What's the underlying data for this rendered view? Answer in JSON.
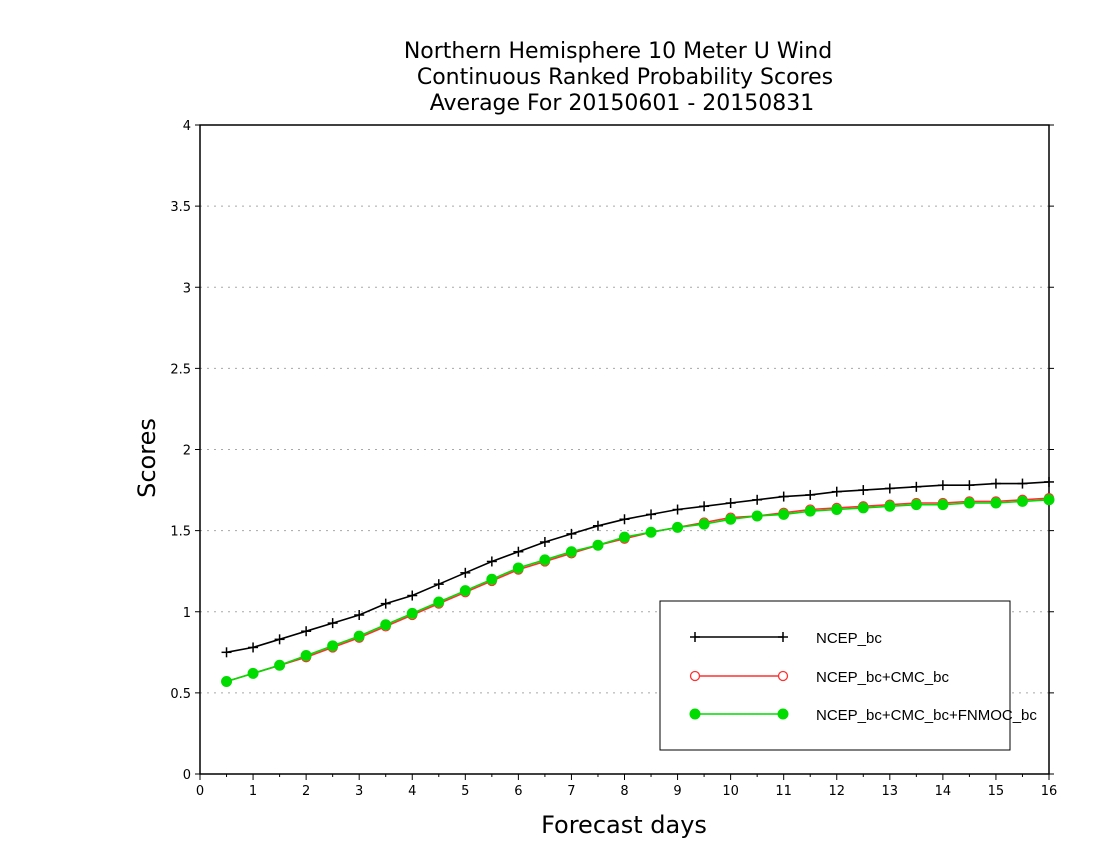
{
  "chart_data": {
    "type": "line",
    "title_lines": [
      "Northern Hemisphere 10 Meter U Wind",
      "Continuous Ranked Probability Scores",
      "Average For 20150601 - 20150831"
    ],
    "xlabel": "Forecast days",
    "ylabel": "Scores",
    "xlim": [
      0,
      16
    ],
    "ylim": [
      0,
      4
    ],
    "x_ticks": [
      "0",
      "1",
      "2",
      "3",
      "4",
      "5",
      "6",
      "7",
      "8",
      "9",
      "10",
      "11",
      "12",
      "13",
      "14",
      "15",
      "16"
    ],
    "y_ticks": [
      "0",
      "0.5",
      "1",
      "1.5",
      "2",
      "2.5",
      "3",
      "3.5",
      "4"
    ],
    "grid": true,
    "legend_position": "bottom-right",
    "x": [
      0.5,
      1,
      1.5,
      2,
      2.5,
      3,
      3.5,
      4,
      4.5,
      5,
      5.5,
      6,
      6.5,
      7,
      7.5,
      8,
      8.5,
      9,
      9.5,
      10,
      10.5,
      11,
      11.5,
      12,
      12.5,
      13,
      13.5,
      14,
      14.5,
      15,
      15.5,
      16
    ],
    "series": [
      {
        "name": "NCEP_bc",
        "color": "#000000",
        "marker": "plus",
        "values": [
          0.75,
          0.78,
          0.83,
          0.88,
          0.93,
          0.98,
          1.05,
          1.1,
          1.17,
          1.24,
          1.31,
          1.37,
          1.43,
          1.48,
          1.53,
          1.57,
          1.6,
          1.63,
          1.65,
          1.67,
          1.69,
          1.71,
          1.72,
          1.74,
          1.75,
          1.76,
          1.77,
          1.78,
          1.78,
          1.79,
          1.79,
          1.8
        ]
      },
      {
        "name": "NCEP_bc+CMC_bc",
        "color": "#ff3030",
        "marker": "open-circle",
        "values": [
          0.57,
          0.62,
          0.67,
          0.72,
          0.78,
          0.84,
          0.91,
          0.98,
          1.05,
          1.12,
          1.19,
          1.26,
          1.31,
          1.36,
          1.41,
          1.45,
          1.49,
          1.52,
          1.55,
          1.58,
          1.59,
          1.61,
          1.63,
          1.64,
          1.65,
          1.66,
          1.67,
          1.67,
          1.68,
          1.68,
          1.69,
          1.7
        ]
      },
      {
        "name": "NCEP_bc+CMC_bc+FNMOC_bc",
        "color": "#00dc00",
        "marker": "filled-circle",
        "values": [
          0.57,
          0.62,
          0.67,
          0.73,
          0.79,
          0.85,
          0.92,
          0.99,
          1.06,
          1.13,
          1.2,
          1.27,
          1.32,
          1.37,
          1.41,
          1.46,
          1.49,
          1.52,
          1.54,
          1.57,
          1.59,
          1.6,
          1.62,
          1.63,
          1.64,
          1.65,
          1.66,
          1.66,
          1.67,
          1.67,
          1.68,
          1.69
        ]
      }
    ]
  }
}
